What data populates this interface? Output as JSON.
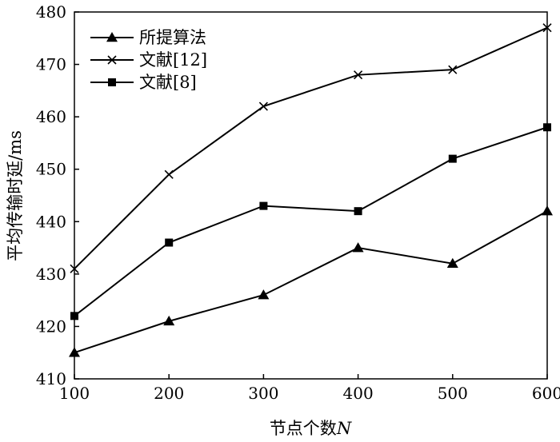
{
  "chart_data": {
    "type": "line",
    "x": [
      100,
      200,
      300,
      400,
      500,
      600
    ],
    "xlim": [
      100,
      600
    ],
    "ylim": [
      410,
      480
    ],
    "xticks": [
      100,
      200,
      300,
      400,
      500,
      600
    ],
    "yticks": [
      410,
      420,
      430,
      440,
      450,
      460,
      470,
      480
    ],
    "xlabel": "节点个数",
    "xlabel_var": "N",
    "ylabel": "平均传输时延/ms",
    "legend_position": "top-left",
    "grid": false,
    "series": [
      {
        "name": "所提算法",
        "marker": "triangle",
        "values": [
          415,
          421,
          426,
          435,
          432,
          442
        ]
      },
      {
        "name": "文献[12]",
        "marker": "cross",
        "values": [
          431,
          449,
          462,
          468,
          469,
          477
        ]
      },
      {
        "name": "文献[8]",
        "marker": "square",
        "values": [
          422,
          436,
          443,
          442,
          452,
          458
        ]
      }
    ]
  }
}
